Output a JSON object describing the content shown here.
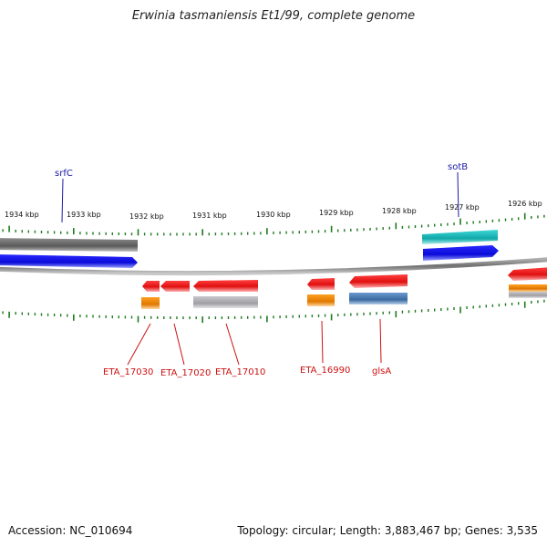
{
  "title": "Erwinia tasmaniensis Et1/99, complete genome",
  "footer": {
    "accession": "Accession: NC_010694",
    "summary": "Topology: circular; Length: 3,883,467 bp; Genes: 3,535"
  },
  "scale_labels": [
    "1934 kbp",
    "1933 kbp",
    "1932 kbp",
    "1931 kbp",
    "1930 kbp",
    "1929 kbp",
    "1928 kbp",
    "1927 kbp",
    "1926 kbp"
  ],
  "gene_labels_top": [
    "srfC",
    "sotB"
  ],
  "gene_labels_bottom": [
    "ETA_17030",
    "ETA_17020",
    "ETA_17010",
    "ETA_16990",
    "glsA"
  ],
  "colors": {
    "backbone": "#8a8a8a",
    "tick": "#1e7a1e",
    "red_gene": "#e81010",
    "blue_gene": "#1010e0",
    "gray_gene": "#7a7a7a",
    "cyan_gene": "#20b8b8",
    "orange_gene": "#f08a00",
    "steel_gene": "#4a7fb8",
    "silver_gene": "#b0b0b4",
    "label_red": "#cc1111",
    "label_blue": "#1a1aa6"
  }
}
